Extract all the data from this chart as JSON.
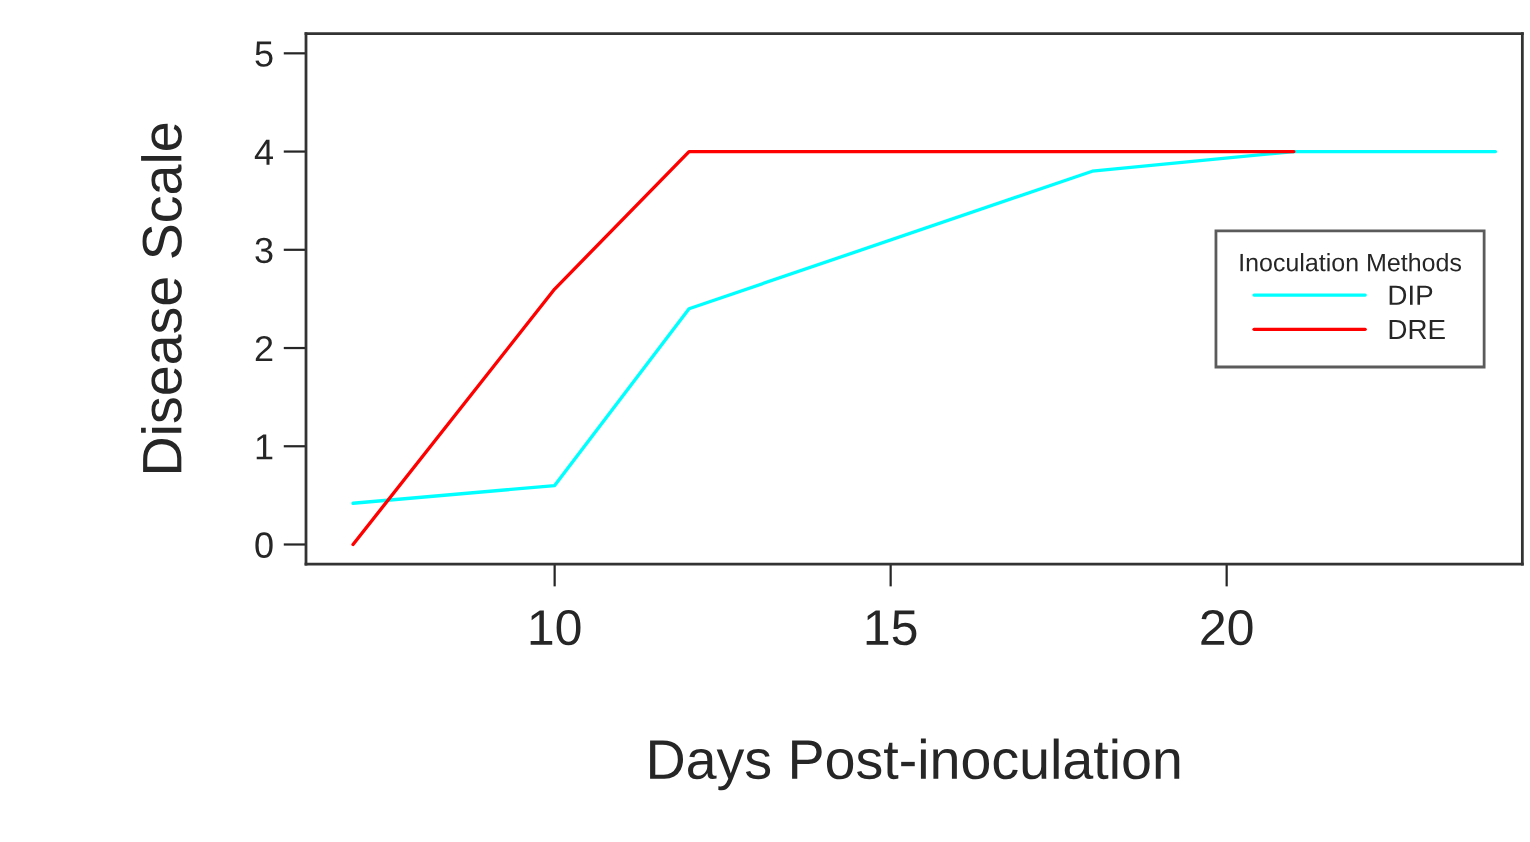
{
  "chart_data": {
    "type": "line",
    "xlabel": "Days Post-inoculation",
    "ylabel": "Disease Scale",
    "legend_title": "Inoculation Methods",
    "legend": "right",
    "xlim": [
      6.3,
      24.4
    ],
    "ylim": [
      -0.2,
      5.2
    ],
    "xticks": [
      10,
      15,
      20
    ],
    "yticks": [
      0,
      1,
      2,
      3,
      4,
      5
    ],
    "grid": false,
    "series": [
      {
        "name": "DIP",
        "color": "#00ffff",
        "x": [
          7,
          10,
          12,
          18,
          21,
          24
        ],
        "values": [
          0.42,
          0.6,
          2.4,
          3.8,
          4,
          4
        ]
      },
      {
        "name": "DRE",
        "color": "#ff0000",
        "x": [
          7,
          10,
          12,
          21
        ],
        "values": [
          0,
          2.6,
          4,
          4
        ]
      }
    ]
  }
}
